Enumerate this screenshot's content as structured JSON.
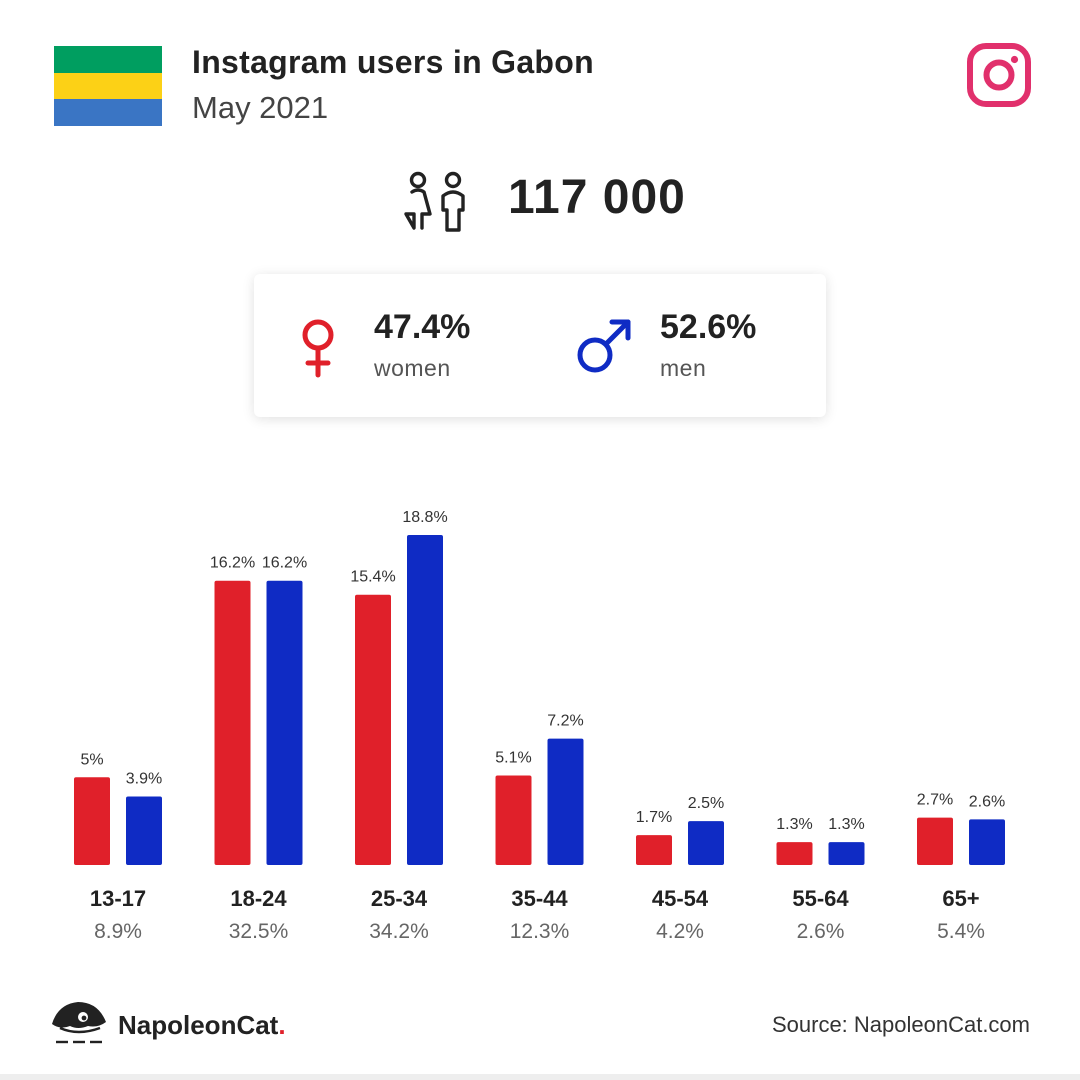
{
  "header": {
    "title": "Instagram users in Gabon",
    "subtitle": "May 2021",
    "flag_colors": [
      "#009e60",
      "#fcd116",
      "#3a75c4"
    ],
    "instagram_icon_color": "#e1306c"
  },
  "summary": {
    "total": "117 000",
    "women_pct": "47.4%",
    "women_label": "women",
    "men_pct": "52.6%",
    "men_label": "men",
    "women_color": "#e0202a",
    "men_color": "#0f2bc4"
  },
  "chart_data": {
    "type": "bar",
    "categories": [
      "13-17",
      "18-24",
      "25-34",
      "35-44",
      "45-54",
      "55-64",
      "65+"
    ],
    "group_totals": [
      "8.9%",
      "32.5%",
      "34.2%",
      "12.3%",
      "4.2%",
      "2.6%",
      "5.4%"
    ],
    "series": [
      {
        "values": [
          5,
          16.2,
          15.4,
          5.1,
          1.7,
          1.3,
          2.7
        ],
        "labels": [
          "5%",
          "16.2%",
          "15.4%",
          "5.1%",
          "1.7%",
          "1.3%",
          "2.7%"
        ],
        "color": "#e0202a"
      },
      {
        "values": [
          3.9,
          16.2,
          18.8,
          7.2,
          2.5,
          1.3,
          2.6
        ],
        "labels": [
          "3.9%",
          "16.2%",
          "18.8%",
          "7.2%",
          "2.5%",
          "1.3%",
          "2.6%"
        ],
        "color": "#0f2bc4"
      }
    ],
    "ylim": [
      0,
      20
    ]
  },
  "footer": {
    "brand": "NapoleonCat",
    "brand_dot": ".",
    "source": "Source: NapoleonCat.com"
  }
}
